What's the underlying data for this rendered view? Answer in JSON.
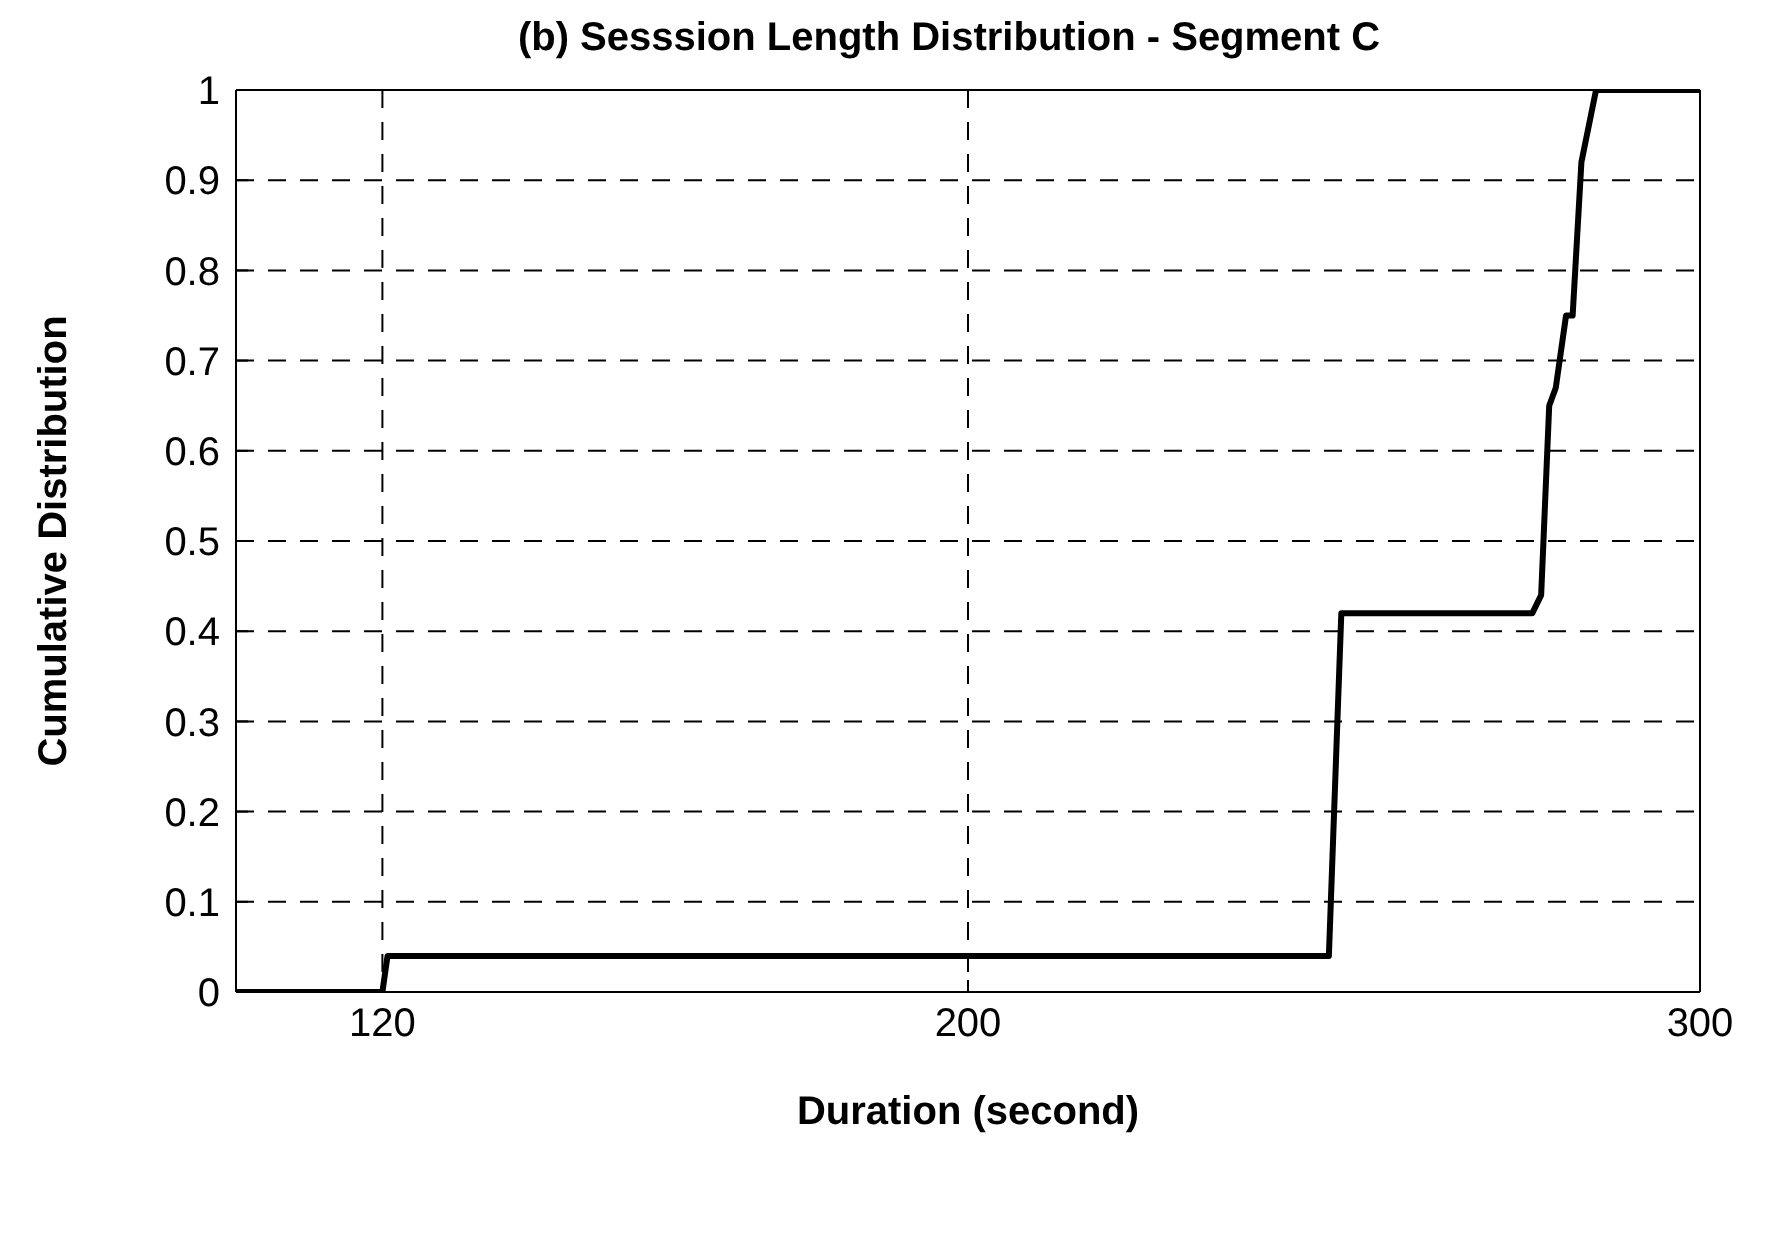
{
  "chart_data": {
    "type": "line",
    "title": "(b) Sesssion Length Distribution - Segment C",
    "xlabel": "Duration (second)",
    "ylabel": "Cumulative Distribution",
    "x": [
      100,
      120,
      120.7,
      249.3,
      251.0,
      277.1,
      278.3,
      279.4,
      280.3,
      281.7,
      282.6,
      283.8,
      285.8,
      300
    ],
    "series": [
      {
        "color": "#000000",
        "values": [
          0,
          0,
          0.04,
          0.04,
          0.42,
          0.42,
          0.44,
          0.65,
          0.67,
          0.75,
          0.75,
          0.92,
          1,
          1
        ]
      }
    ],
    "xlim": [
      100,
      300
    ],
    "xticks": [
      120,
      200,
      300
    ],
    "ylim": [
      0,
      1
    ],
    "yticks": [
      0,
      0.1,
      0.2,
      0.3,
      0.4,
      0.5,
      0.6,
      0.7,
      0.8,
      0.9,
      1
    ],
    "grid": true,
    "legend": false,
    "marker": "none",
    "line_style": "solid"
  }
}
